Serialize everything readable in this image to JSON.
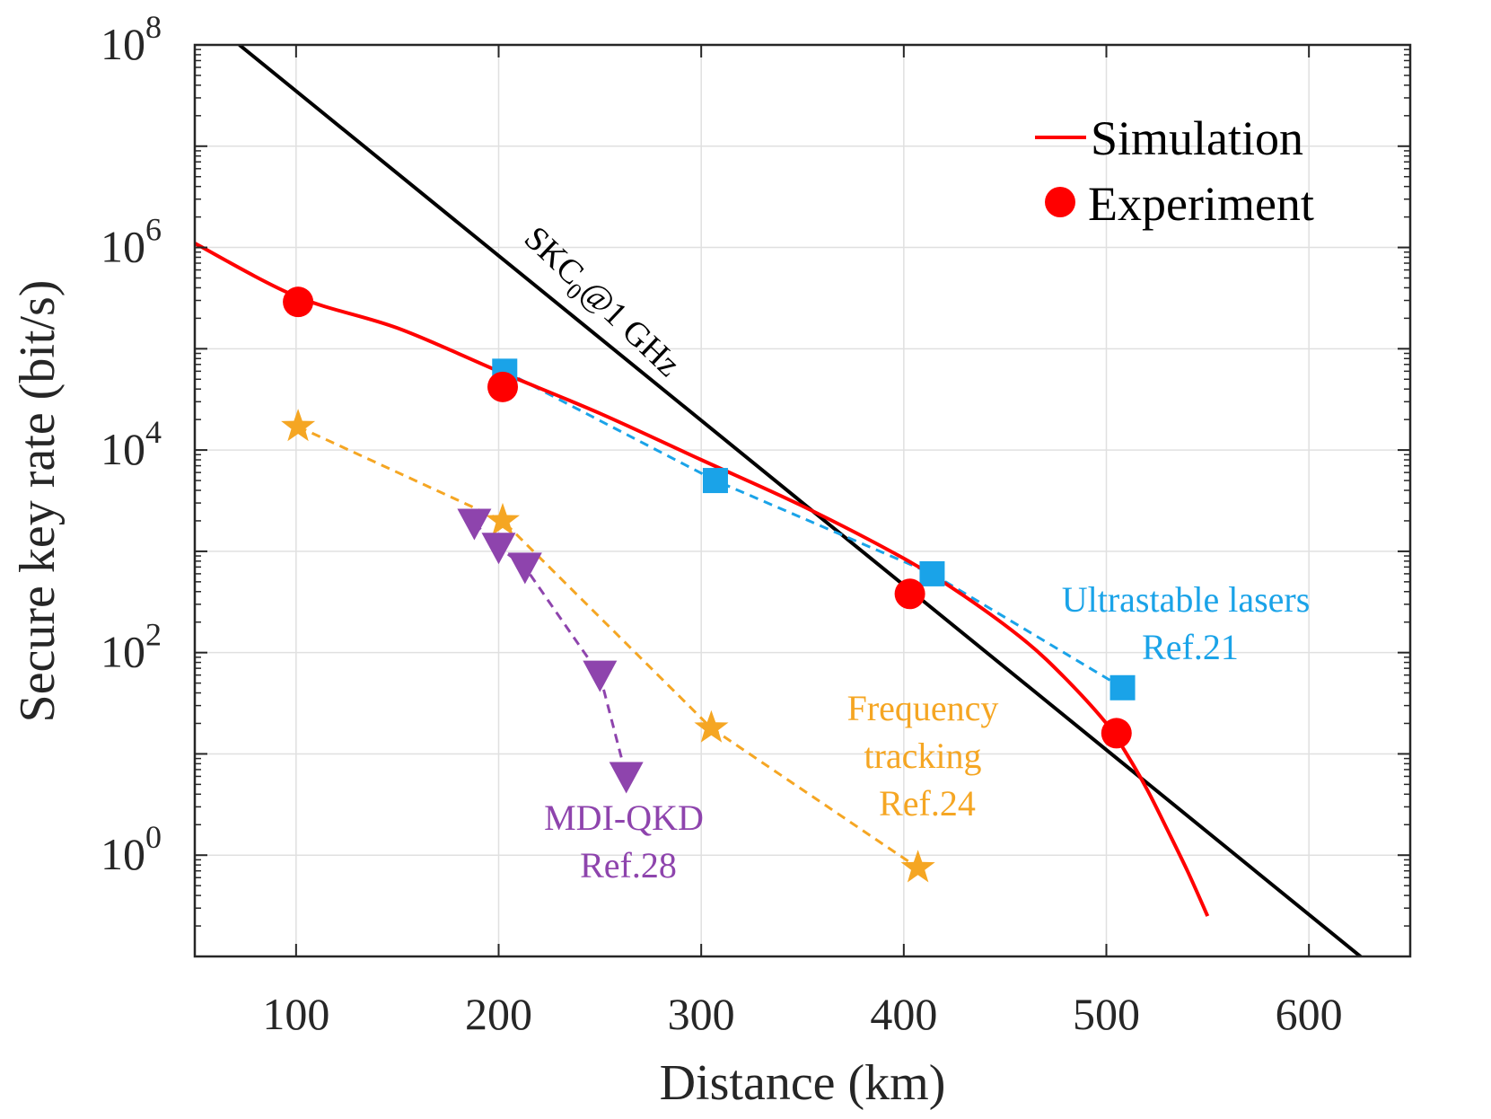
{
  "chart_data": {
    "type": "line",
    "title": "",
    "xlabel": "Distance (km)",
    "ylabel": "Secure key rate (bit/s)",
    "xlim": [
      50,
      650
    ],
    "ylim": [
      0.1,
      100000000
    ],
    "yscale": "log",
    "grid": true,
    "legend_position": "top-right",
    "x_ticks": [
      "100",
      "200",
      "300",
      "400",
      "500",
      "600"
    ],
    "y_ticks": [
      {
        "base": "10",
        "exp": "0"
      },
      {
        "base": "10",
        "exp": "2"
      },
      {
        "base": "10",
        "exp": "4"
      },
      {
        "base": "10",
        "exp": "6"
      },
      {
        "base": "10",
        "exp": "8"
      }
    ],
    "colors": {
      "simulation": "#ff0000",
      "experiment": "#ff0000",
      "skc": "#000000",
      "ultrastable": "#1aa3e8",
      "frequency": "#f5a623",
      "mdi": "#8e44ad",
      "grid": "#e0e0e0",
      "axis": "#262626"
    },
    "legend": [
      {
        "name": "Simulation",
        "marker": "line"
      },
      {
        "name": "Experiment",
        "marker": "circle"
      }
    ],
    "skc_label": {
      "main": "SKC",
      "sub": "0",
      "rest": "@1 GHz"
    },
    "series": [
      {
        "name": "Simulation",
        "style": "solid-line",
        "x": [
          50,
          100,
          150,
          200,
          250,
          300,
          350,
          400,
          430,
          460,
          480,
          500,
          510,
          520,
          530,
          540,
          550
        ],
        "y": [
          1100000,
          330000,
          160000,
          60000,
          23000,
          8000,
          2800,
          850,
          360,
          130,
          55,
          20,
          10,
          4.5,
          1.8,
          0.7,
          0.25
        ]
      },
      {
        "name": "Experiment",
        "style": "markers-circle",
        "x": [
          101,
          202,
          403,
          505
        ],
        "y": [
          290000,
          42000,
          380,
          16
        ]
      },
      {
        "name": "SKC0@1 GHz",
        "style": "solid-line",
        "x": [
          72,
          635
        ],
        "y": [
          100000000,
          0.07
        ]
      },
      {
        "name": "Ultrastable lasers Ref.21",
        "style": "dashed-squares",
        "x": [
          203,
          307,
          414,
          508
        ],
        "y": [
          60000,
          5000,
          600,
          45
        ]
      },
      {
        "name": "Frequency tracking Ref.24",
        "style": "dashed-stars",
        "x": [
          101,
          202,
          305,
          407
        ],
        "y": [
          17000,
          2000,
          18,
          0.75
        ]
      },
      {
        "name": "MDI-QKD Ref.28",
        "style": "dashed-triangles",
        "x": [
          188,
          200,
          213,
          250,
          263
        ],
        "y": [
          1900,
          1100,
          700,
          60,
          6
        ]
      }
    ],
    "annotations": [
      {
        "series": "Ultrastable lasers Ref.21",
        "lines": [
          "Ultrastable lasers",
          "Ref.21"
        ]
      },
      {
        "series": "Frequency tracking Ref.24",
        "lines": [
          "Frequency",
          "tracking",
          "Ref.24"
        ]
      },
      {
        "series": "MDI-QKD Ref.28",
        "lines": [
          "MDI-QKD",
          "Ref.28"
        ]
      }
    ]
  }
}
